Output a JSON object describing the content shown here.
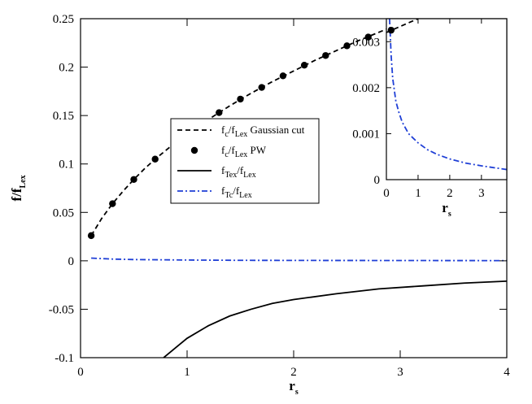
{
  "chart_data": [
    {
      "type": "line",
      "xlabel": "r",
      "xlabel_sub": "s",
      "ylabel": "f/f",
      "ylabel_sub": "Lex",
      "xlim": [
        0,
        4
      ],
      "ylim": [
        -0.1,
        0.25
      ],
      "xticks": [
        "0",
        "1",
        "2",
        "3",
        "4"
      ],
      "yticks": [
        "-0.1",
        "-0.05",
        "0",
        "0.05",
        "0.1",
        "0.15",
        "0.2",
        "0.25"
      ],
      "grid": false,
      "legend_position": "center-left",
      "series": [
        {
          "name": "f_c/f_Lex Gaussian cut",
          "name_main": "f",
          "name_parts": [
            [
              "c",
              "sub"
            ],
            [
              "/f",
              "main"
            ],
            [
              "Lex",
              "sub"
            ],
            [
              " Gaussian cut",
              "main"
            ]
          ],
          "style": "dashed",
          "color": "#000000",
          "x": [
            0.1,
            0.2,
            0.3,
            0.4,
            0.5,
            0.6,
            0.7,
            0.8,
            0.9,
            1.0,
            1.2,
            1.4,
            1.6,
            1.8,
            2.0,
            2.2,
            2.4,
            2.6,
            2.8,
            3.0,
            3.1
          ],
          "y": [
            0.026,
            0.044,
            0.059,
            0.072,
            0.084,
            0.095,
            0.105,
            0.114,
            0.123,
            0.131,
            0.146,
            0.16,
            0.173,
            0.185,
            0.196,
            0.207,
            0.217,
            0.227,
            0.236,
            0.245,
            0.25
          ]
        },
        {
          "name": "f_c/f_Lex PW",
          "name_parts": [
            [
              "c",
              "sub"
            ],
            [
              "/f",
              "main"
            ],
            [
              "Lex",
              "sub"
            ],
            [
              " PW",
              "main"
            ]
          ],
          "style": "markers",
          "color": "#000000",
          "x": [
            0.1,
            0.3,
            0.5,
            0.7,
            0.9,
            1.1,
            1.3,
            1.5,
            1.7,
            1.9,
            2.1,
            2.3,
            2.5,
            2.7,
            2.9,
            3.1
          ],
          "y": [
            0.026,
            0.059,
            0.084,
            0.105,
            0.123,
            0.139,
            0.153,
            0.167,
            0.179,
            0.191,
            0.202,
            0.212,
            0.222,
            0.231,
            0.24,
            0.249
          ]
        },
        {
          "name": "f_Tex/f_Lex",
          "name_parts": [
            [
              "Tex",
              "sub"
            ],
            [
              "/f",
              "main"
            ],
            [
              "Lex",
              "sub"
            ]
          ],
          "style": "solid",
          "color": "#000000",
          "x": [
            0.78,
            0.9,
            1.0,
            1.2,
            1.4,
            1.6,
            1.8,
            2.0,
            2.4,
            2.8,
            3.2,
            3.6,
            4.0
          ],
          "y": [
            -0.1,
            -0.089,
            -0.08,
            -0.067,
            -0.057,
            -0.05,
            -0.044,
            -0.04,
            -0.034,
            -0.029,
            -0.026,
            -0.023,
            -0.021
          ]
        },
        {
          "name": "f_Tc/f_Lex",
          "name_parts": [
            [
              "Tc",
              "sub"
            ],
            [
              "/f",
              "main"
            ],
            [
              "Lex",
              "sub"
            ]
          ],
          "style": "dashdot",
          "color": "#1f3fd6",
          "x": [
            0.1,
            0.3,
            0.5,
            1.0,
            1.5,
            2.0,
            3.0,
            4.0
          ],
          "y": [
            0.0028,
            0.0018,
            0.0013,
            0.0008,
            0.0005,
            0.0004,
            0.0003,
            0.0002
          ]
        }
      ]
    },
    {
      "type": "line",
      "role": "inset",
      "xlabel": "r",
      "xlabel_sub": "s",
      "xlim": [
        0,
        3.8
      ],
      "ylim": [
        0,
        0.0035
      ],
      "xticks": [
        "0",
        "1",
        "2",
        "3"
      ],
      "yticks": [
        "0",
        "0.001",
        "0.002",
        "0.003"
      ],
      "grid": false,
      "series": [
        {
          "name": "",
          "style": "dashdot",
          "color": "#1f3fd6",
          "x": [
            0.1,
            0.15,
            0.2,
            0.3,
            0.4,
            0.5,
            0.7,
            1.0,
            1.3,
            1.6,
            2.0,
            2.5,
            3.0,
            3.5,
            3.8
          ],
          "y": [
            0.0035,
            0.0027,
            0.0022,
            0.0017,
            0.00145,
            0.00125,
            0.001,
            0.0008,
            0.00065,
            0.00055,
            0.00045,
            0.00036,
            0.0003,
            0.00025,
            0.00022
          ]
        },
        {
          "name": "",
          "style": "dashed",
          "color": "#000000",
          "x": [
            0,
            1.0
          ],
          "y": [
            0.0032,
            0.0035
          ]
        },
        {
          "name": "",
          "style": "markers",
          "color": "#000000",
          "x": [
            0.15
          ],
          "y": [
            0.00325
          ]
        }
      ]
    }
  ]
}
